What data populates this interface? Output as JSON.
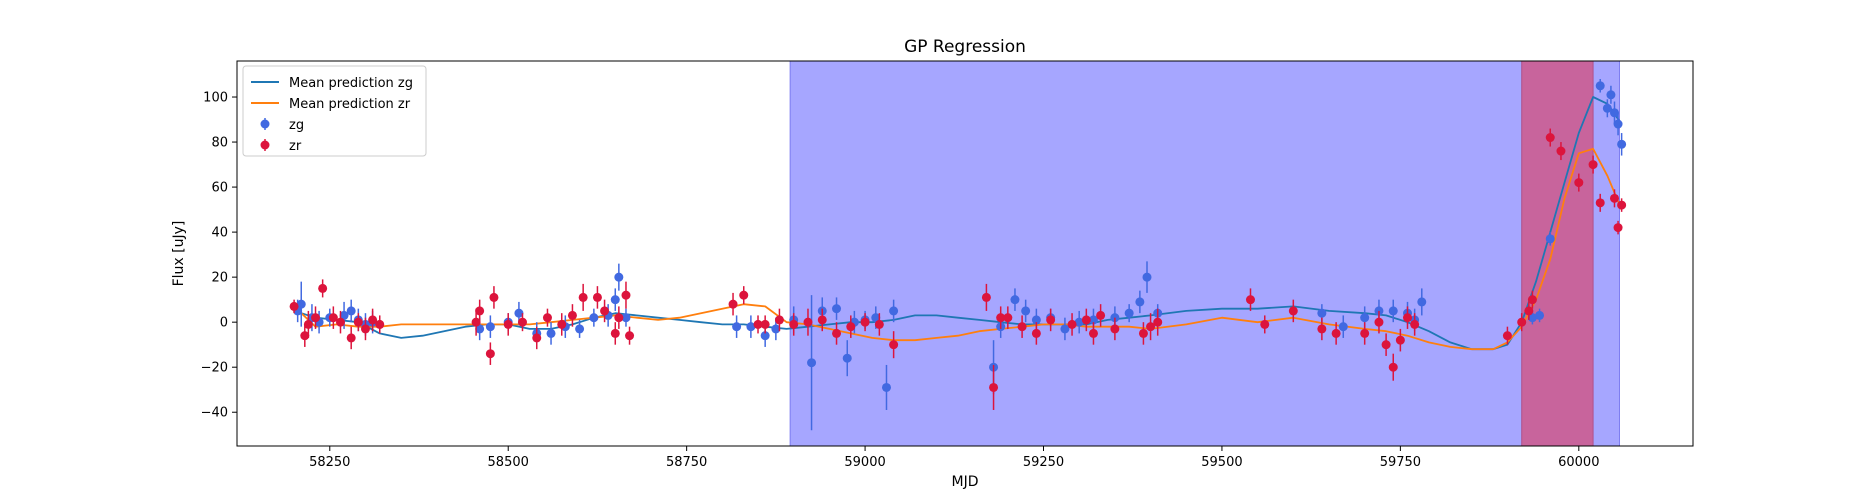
{
  "chart_data": {
    "type": "scatter",
    "title": "GP Regression",
    "xlabel": "MJD",
    "ylabel": "Flux [uJy]",
    "xlim": [
      58120,
      60160
    ],
    "ylim": [
      -55,
      116
    ],
    "xticks": [
      58250,
      58500,
      58750,
      59000,
      59250,
      59500,
      59750,
      60000
    ],
    "yticks": [
      -40,
      -20,
      0,
      20,
      40,
      60,
      80,
      100
    ],
    "grid": false,
    "legend_position": "top-left",
    "legend": [
      "Mean prediction zg",
      "Mean prediction zr",
      "zg",
      "zr"
    ],
    "colors": {
      "zg_line": "#1f77b4",
      "zr_line": "#ff7f0e",
      "zg_points": "#4169e1",
      "zr_points": "#dc143c",
      "shade_blue": "#a6a6ff",
      "shade_magenta": "#c8649c"
    },
    "shaded_regions": [
      {
        "x_start": 58895,
        "x_end": 60057,
        "color": "blue"
      },
      {
        "x_start": 59920,
        "x_end": 60020,
        "color": "magenta"
      }
    ],
    "series": [
      {
        "name": "Mean prediction zg",
        "kind": "line",
        "x": [
          58200,
          58230,
          58260,
          58290,
          58320,
          58350,
          58380,
          58410,
          58440,
          58470,
          58500,
          58530,
          58560,
          58590,
          58620,
          58650,
          58680,
          58710,
          58740,
          58770,
          58800,
          58830,
          58860,
          58890,
          58920,
          58950,
          58980,
          59010,
          59040,
          59070,
          59100,
          59130,
          59160,
          59190,
          59220,
          59250,
          59280,
          59310,
          59340,
          59370,
          59400,
          59450,
          59500,
          59550,
          59600,
          59650,
          59700,
          59730,
          59760,
          59790,
          59820,
          59850,
          59880,
          59900,
          59920,
          59940,
          59960,
          59980,
          60000,
          60020,
          60040,
          60060
        ],
        "y": [
          5,
          2,
          1,
          0,
          -5,
          -7,
          -6,
          -4,
          -2,
          -1,
          -1,
          -3,
          -3,
          -1,
          2,
          4,
          3,
          2,
          1,
          0,
          -1,
          -1,
          -2,
          -3,
          -2,
          -1,
          0,
          0,
          1,
          3,
          3,
          2,
          1,
          0,
          -1,
          -1,
          -1,
          -1,
          1,
          2,
          3,
          5,
          6,
          6,
          7,
          5,
          4,
          3,
          0,
          -4,
          -9,
          -12,
          -12,
          -10,
          0,
          18,
          40,
          62,
          84,
          100,
          97,
          88
        ]
      },
      {
        "name": "Mean prediction zr",
        "kind": "line",
        "x": [
          58200,
          58230,
          58260,
          58290,
          58320,
          58350,
          58380,
          58410,
          58440,
          58470,
          58500,
          58530,
          58560,
          58590,
          58620,
          58650,
          58680,
          58710,
          58740,
          58770,
          58800,
          58830,
          58860,
          58890,
          58920,
          58950,
          58980,
          59010,
          59040,
          59070,
          59100,
          59130,
          59160,
          59190,
          59220,
          59250,
          59280,
          59310,
          59340,
          59370,
          59400,
          59450,
          59500,
          59550,
          59600,
          59650,
          59700,
          59730,
          59760,
          59790,
          59820,
          59850,
          59880,
          59900,
          59920,
          59940,
          59960,
          59980,
          60000,
          60020,
          60040,
          60060
        ],
        "y": [
          7,
          -2,
          -1,
          -2,
          -2,
          -1,
          -1,
          -1,
          -1,
          -1,
          -1,
          -1,
          0,
          1,
          2,
          3,
          2,
          1,
          2,
          4,
          6,
          8,
          7,
          0,
          -1,
          -3,
          -5,
          -7,
          -8,
          -8,
          -7,
          -6,
          -4,
          -3,
          -2,
          -1,
          -1,
          -2,
          -2,
          -2,
          -3,
          -1,
          2,
          0,
          2,
          -1,
          -3,
          -4,
          -6,
          -9,
          -11,
          -12,
          -12,
          -9,
          -2,
          10,
          28,
          55,
          75,
          77,
          65,
          50
        ]
      },
      {
        "name": "zg",
        "kind": "errorbar",
        "x": [
          58205,
          58210,
          58225,
          58235,
          58250,
          58270,
          58280,
          58290,
          58300,
          58310,
          58460,
          58475,
          58500,
          58515,
          58540,
          58560,
          58580,
          58600,
          58620,
          58640,
          58650,
          58655,
          58665,
          58820,
          58840,
          58860,
          58875,
          58900,
          58925,
          58940,
          58960,
          58975,
          58985,
          59000,
          59015,
          59030,
          59040,
          59180,
          59190,
          59210,
          59225,
          59240,
          59260,
          59280,
          59300,
          59320,
          59350,
          59370,
          59385,
          59395,
          59410,
          59640,
          59670,
          59700,
          59720,
          59740,
          59760,
          59770,
          59780,
          59935,
          59945,
          59960,
          60030,
          60040,
          60045,
          60050,
          60055,
          60060
        ],
        "y": [
          5,
          8,
          2,
          0,
          2,
          3,
          5,
          1,
          -1,
          0,
          -3,
          -2,
          0,
          4,
          -5,
          -5,
          -2,
          -3,
          2,
          3,
          10,
          20,
          2,
          -2,
          -2,
          -6,
          -3,
          1,
          -18,
          5,
          6,
          -16,
          0,
          1,
          2,
          -29,
          5,
          -20,
          -2,
          10,
          5,
          1,
          2,
          -3,
          0,
          1,
          2,
          4,
          9,
          20,
          4,
          4,
          -2,
          2,
          5,
          5,
          4,
          1,
          9,
          2,
          3,
          37,
          105,
          95,
          101,
          93,
          88,
          79
        ],
        "err": [
          5,
          10,
          6,
          5,
          4,
          6,
          5,
          5,
          5,
          5,
          5,
          5,
          4,
          5,
          5,
          5,
          5,
          4,
          4,
          5,
          5,
          6,
          4,
          5,
          5,
          5,
          5,
          6,
          30,
          6,
          5,
          8,
          5,
          4,
          5,
          10,
          5,
          12,
          5,
          5,
          5,
          5,
          4,
          5,
          5,
          5,
          5,
          4,
          5,
          7,
          4,
          4,
          5,
          5,
          5,
          5,
          5,
          5,
          6,
          3,
          3,
          3,
          3,
          4,
          4,
          5,
          5,
          5
        ]
      },
      {
        "name": "zr",
        "kind": "errorbar",
        "x": [
          58200,
          58215,
          58220,
          58230,
          58240,
          58255,
          58265,
          58280,
          58290,
          58300,
          58310,
          58320,
          58455,
          58460,
          58475,
          58480,
          58500,
          58520,
          58540,
          58555,
          58575,
          58590,
          58605,
          58625,
          58635,
          58650,
          58655,
          58665,
          58670,
          58815,
          58830,
          58850,
          58860,
          58880,
          58900,
          58920,
          58940,
          58960,
          58980,
          59000,
          59020,
          59040,
          59170,
          59180,
          59190,
          59200,
          59220,
          59240,
          59260,
          59290,
          59310,
          59320,
          59330,
          59350,
          59390,
          59400,
          59410,
          59540,
          59560,
          59600,
          59640,
          59660,
          59700,
          59720,
          59730,
          59740,
          59750,
          59760,
          59770,
          59900,
          59920,
          59930,
          59935,
          59960,
          59975,
          60000,
          60020,
          60030,
          60050,
          60055,
          60060
        ],
        "y": [
          7,
          -6,
          -1,
          2,
          15,
          2,
          0,
          -7,
          0,
          -3,
          1,
          -1,
          0,
          5,
          -14,
          11,
          -1,
          0,
          -7,
          2,
          -1,
          3,
          11,
          11,
          5,
          -5,
          2,
          12,
          -6,
          8,
          12,
          -1,
          -1,
          1,
          -1,
          0,
          1,
          -5,
          -2,
          0,
          -1,
          -10,
          11,
          -29,
          2,
          2,
          -2,
          -5,
          1,
          -1,
          1,
          -5,
          3,
          -3,
          -5,
          -2,
          0,
          10,
          -1,
          5,
          -3,
          -5,
          -5,
          0,
          -10,
          -20,
          -8,
          2,
          -1,
          -6,
          0,
          5,
          10,
          82,
          76,
          62,
          70,
          53,
          55,
          42,
          52
        ],
        "err": [
          3,
          5,
          6,
          5,
          4,
          5,
          5,
          5,
          4,
          5,
          5,
          4,
          6,
          5,
          5,
          5,
          5,
          4,
          5,
          4,
          5,
          5,
          6,
          5,
          5,
          5,
          5,
          6,
          4,
          5,
          4,
          4,
          4,
          5,
          5,
          6,
          5,
          5,
          5,
          4,
          5,
          6,
          6,
          10,
          5,
          5,
          5,
          5,
          5,
          5,
          5,
          5,
          5,
          5,
          5,
          6,
          6,
          5,
          4,
          5,
          5,
          5,
          5,
          5,
          5,
          6,
          5,
          5,
          5,
          4,
          4,
          4,
          4,
          4,
          4,
          4,
          4,
          4,
          4,
          3,
          3
        ]
      }
    ]
  }
}
